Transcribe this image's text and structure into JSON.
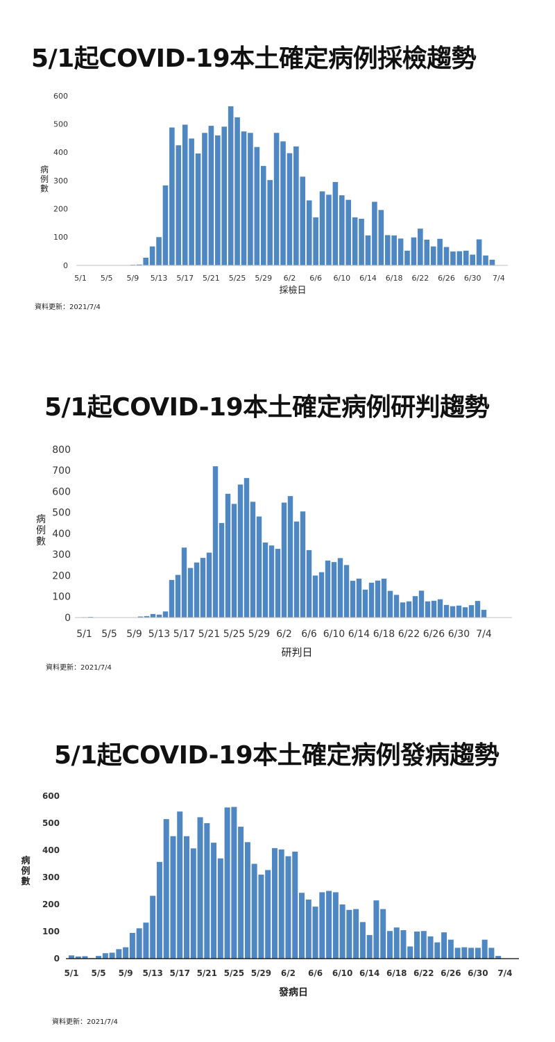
{
  "chart_data": [
    {
      "type": "bar",
      "title": "5/1起COVID-19本土確定病例採檢趨勢",
      "xlabel": "採檢日",
      "ylabel": "病例數",
      "ylim": [
        0,
        600
      ],
      "yticks": [
        0,
        100,
        200,
        300,
        400,
        500,
        600
      ],
      "xtick_labels": [
        "5/1",
        "5/5",
        "5/9",
        "5/13",
        "5/17",
        "5/21",
        "5/25",
        "5/29",
        "6/2",
        "6/6",
        "6/10",
        "6/14",
        "6/18",
        "6/22",
        "6/26",
        "6/30",
        "7/4"
      ],
      "categories": [
        "5/1",
        "5/2",
        "5/3",
        "5/4",
        "5/5",
        "5/6",
        "5/7",
        "5/8",
        "5/9",
        "5/10",
        "5/11",
        "5/12",
        "5/13",
        "5/14",
        "5/15",
        "5/16",
        "5/17",
        "5/18",
        "5/19",
        "5/20",
        "5/21",
        "5/22",
        "5/23",
        "5/24",
        "5/25",
        "5/26",
        "5/27",
        "5/28",
        "5/29",
        "5/30",
        "5/31",
        "6/1",
        "6/2",
        "6/3",
        "6/4",
        "6/5",
        "6/6",
        "6/7",
        "6/8",
        "6/9",
        "6/10",
        "6/11",
        "6/12",
        "6/13",
        "6/14",
        "6/15",
        "6/16",
        "6/17",
        "6/18",
        "6/19",
        "6/20",
        "6/21",
        "6/22",
        "6/23",
        "6/24",
        "6/25",
        "6/26",
        "6/27",
        "6/28",
        "6/29",
        "6/30",
        "7/1",
        "7/2",
        "7/3"
      ],
      "values": [
        0,
        0,
        0,
        0,
        0,
        0,
        0,
        0,
        2,
        3,
        27,
        67,
        100,
        283,
        488,
        425,
        498,
        449,
        396,
        469,
        494,
        460,
        491,
        563,
        524,
        474,
        469,
        419,
        352,
        302,
        469,
        439,
        397,
        421,
        314,
        230,
        170,
        262,
        250,
        295,
        248,
        232,
        170,
        165,
        106,
        225,
        196,
        107,
        106,
        95,
        52,
        99,
        130,
        91,
        67,
        94,
        65,
        49,
        50,
        52,
        38,
        92,
        35,
        20
      ],
      "grid": false,
      "legend": "none",
      "bar_color": "#4f87c2",
      "footnote": "資料更新：2021/7/4"
    },
    {
      "type": "bar",
      "title": "5/1起COVID-19本土確定病例研判趨勢",
      "xlabel": "研判日",
      "ylabel": "病例數",
      "ylim": [
        0,
        800
      ],
      "yticks": [
        0,
        100,
        200,
        300,
        400,
        500,
        600,
        700,
        800
      ],
      "xtick_labels": [
        "5/1",
        "5/5",
        "5/9",
        "5/13",
        "5/17",
        "5/21",
        "5/25",
        "5/29",
        "6/2",
        "6/6",
        "6/10",
        "6/14",
        "6/18",
        "6/22",
        "6/26",
        "6/30",
        "7/4"
      ],
      "categories": [
        "5/1",
        "5/2",
        "5/3",
        "5/4",
        "5/5",
        "5/6",
        "5/7",
        "5/8",
        "5/9",
        "5/10",
        "5/11",
        "5/12",
        "5/13",
        "5/14",
        "5/15",
        "5/16",
        "5/17",
        "5/18",
        "5/19",
        "5/20",
        "5/21",
        "5/22",
        "5/23",
        "5/24",
        "5/25",
        "5/26",
        "5/27",
        "5/28",
        "5/29",
        "5/30",
        "5/31",
        "6/1",
        "6/2",
        "6/3",
        "6/4",
        "6/5",
        "6/6",
        "6/7",
        "6/8",
        "6/9",
        "6/10",
        "6/11",
        "6/12",
        "6/13",
        "6/14",
        "6/15",
        "6/16",
        "6/17",
        "6/18",
        "6/19",
        "6/20",
        "6/21",
        "6/22",
        "6/23",
        "6/24",
        "6/25",
        "6/26",
        "6/27",
        "6/28",
        "6/29",
        "6/30",
        "7/1",
        "7/2",
        "7/3",
        "7/4"
      ],
      "values": [
        2,
        3,
        0,
        0,
        0,
        0,
        0,
        0,
        0,
        5,
        7,
        17,
        14,
        29,
        179,
        203,
        333,
        236,
        262,
        284,
        309,
        720,
        450,
        589,
        541,
        633,
        664,
        551,
        481,
        357,
        343,
        327,
        547,
        578,
        457,
        505,
        321,
        200,
        216,
        271,
        264,
        283,
        250,
        175,
        185,
        133,
        166,
        176,
        185,
        127,
        108,
        72,
        77,
        102,
        128,
        77,
        80,
        87,
        60,
        54,
        57,
        49,
        59,
        79,
        37
      ],
      "grid": false,
      "legend": "none",
      "bar_color": "#4f87c2",
      "footnote": "資料更新：2021/7/4"
    },
    {
      "type": "bar",
      "title": "5/1起COVID-19本土確定病例發病趨勢",
      "xlabel": "發病日",
      "ylabel": "病例數",
      "ylim": [
        0,
        600
      ],
      "yticks": [
        0,
        100,
        200,
        300,
        400,
        500,
        600
      ],
      "xtick_labels": [
        "5/1",
        "5/5",
        "5/9",
        "5/13",
        "5/17",
        "5/21",
        "5/25",
        "5/29",
        "6/2",
        "6/6",
        "6/10",
        "6/14",
        "6/18",
        "6/22",
        "6/26",
        "6/30",
        "7/4"
      ],
      "categories": [
        "5/1",
        "5/2",
        "5/3",
        "5/4",
        "5/5",
        "5/6",
        "5/7",
        "5/8",
        "5/9",
        "5/10",
        "5/11",
        "5/12",
        "5/13",
        "5/14",
        "5/15",
        "5/16",
        "5/17",
        "5/18",
        "5/19",
        "5/20",
        "5/21",
        "5/22",
        "5/23",
        "5/24",
        "5/25",
        "5/26",
        "5/27",
        "5/28",
        "5/29",
        "5/30",
        "5/31",
        "6/1",
        "6/2",
        "6/3",
        "6/4",
        "6/5",
        "6/6",
        "6/7",
        "6/8",
        "6/9",
        "6/10",
        "6/11",
        "6/12",
        "6/13",
        "6/14",
        "6/15",
        "6/16",
        "6/17",
        "6/18",
        "6/19",
        "6/20",
        "6/21",
        "6/22",
        "6/23",
        "6/24",
        "6/25",
        "6/26",
        "6/27",
        "6/28",
        "6/29",
        "6/30",
        "7/1",
        "7/2",
        "7/3",
        "7/4"
      ],
      "values": [
        12,
        8,
        9,
        2,
        10,
        20,
        22,
        35,
        42,
        95,
        112,
        133,
        232,
        357,
        515,
        452,
        543,
        452,
        407,
        522,
        500,
        428,
        370,
        558,
        560,
        487,
        430,
        350,
        310,
        327,
        408,
        403,
        378,
        395,
        243,
        218,
        192,
        245,
        250,
        245,
        200,
        180,
        183,
        135,
        87,
        215,
        183,
        102,
        115,
        105,
        45,
        100,
        102,
        82,
        60,
        97,
        70,
        40,
        42,
        40,
        40,
        70,
        40,
        10,
        0
      ],
      "grid": false,
      "legend": "none",
      "bar_color": "#4f87c2",
      "footnote": "資料更新：2021/7/4"
    }
  ]
}
